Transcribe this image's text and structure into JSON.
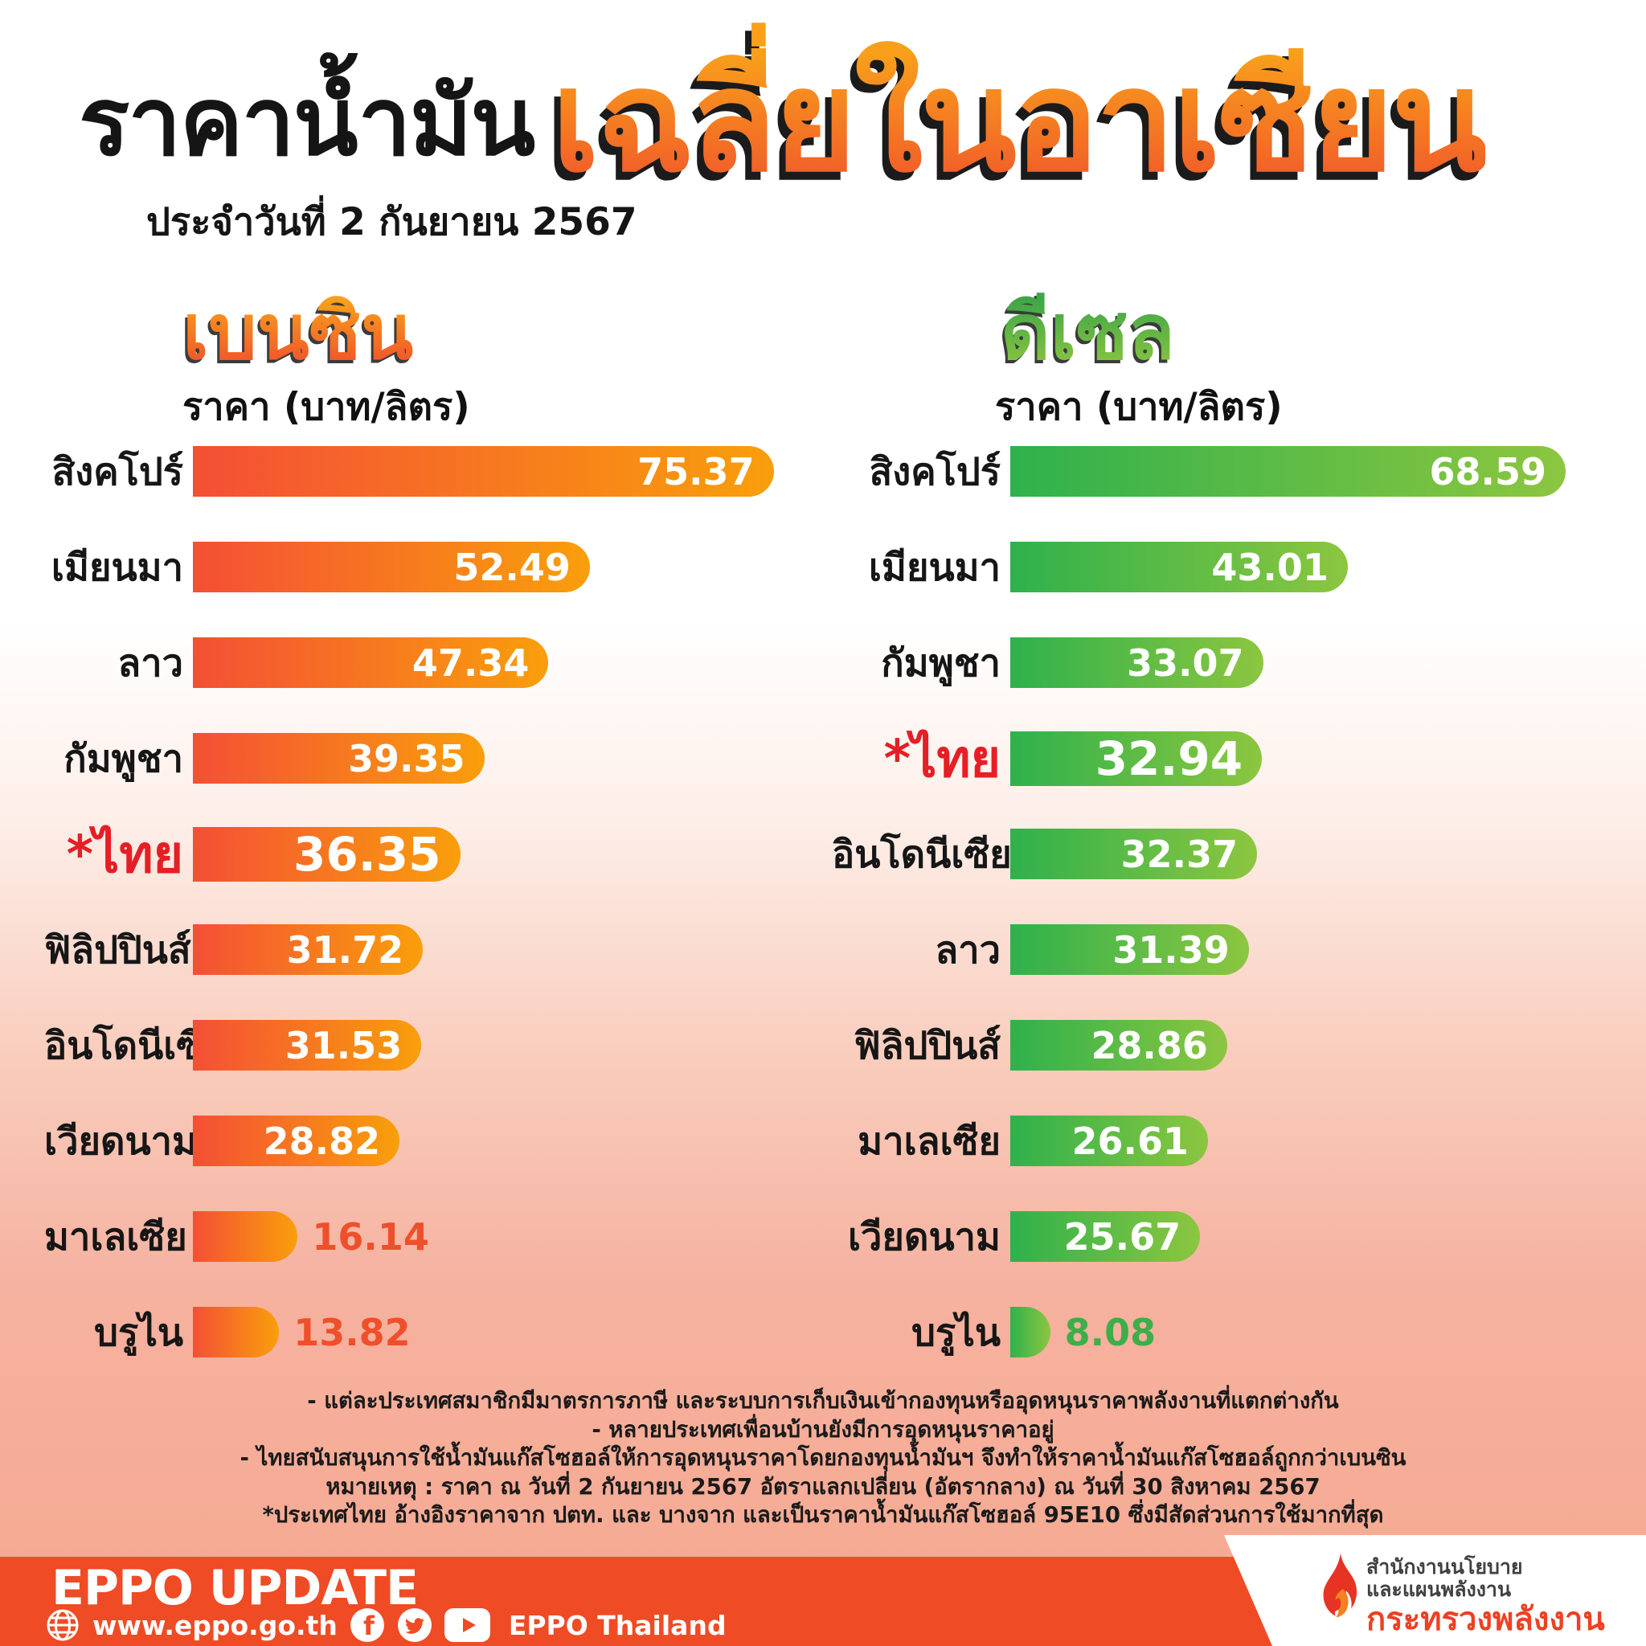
{
  "header": {
    "title": "ราคาน้ำมัน",
    "date": "ประจำวันที่ 2 กันยายน 2567",
    "subtitle": "เฉลี่ยในอาเซียน"
  },
  "chart_data": [
    {
      "type": "bar",
      "title": "เบนซิน",
      "unit_label": "ราคา (บาท/ลิตร)",
      "orientation": "horizontal",
      "xlim": [
        0,
        80
      ],
      "bar_gradient": [
        "#f44f35",
        "#f99f0b"
      ],
      "outside_value_color": "#ef4f2b",
      "highlight": "*ไทย",
      "value_labels_outside": [
        "มาเลเซีย",
        "บรูไน"
      ],
      "categories": [
        "สิงคโปร์",
        "เมียนมา",
        "ลาว",
        "กัมพูชา",
        "*ไทย",
        "ฟิลิปปินส์",
        "อินโดนีเซีย",
        "เวียดนาม",
        "มาเลเซีย",
        "บรูไน"
      ],
      "values": [
        75.37,
        52.49,
        47.34,
        39.35,
        36.35,
        31.72,
        31.53,
        28.82,
        16.14,
        13.82
      ]
    },
    {
      "type": "bar",
      "title": "ดีเซล",
      "unit_label": "ราคา (บาท/ลิตร)",
      "orientation": "horizontal",
      "xlim": [
        0,
        72
      ],
      "bar_gradient": [
        "#2fb14c",
        "#8cc63f"
      ],
      "outside_value_color": "#3dae49",
      "highlight": "*ไทย",
      "value_labels_outside": [
        "บรูไน"
      ],
      "categories": [
        "สิงคโปร์",
        "เมียนมา",
        "กัมพูชา",
        "*ไทย",
        "อินโดนีเซีย",
        "ลาว",
        "ฟิลิปปินส์",
        "มาเลเซีย",
        "เวียดนาม",
        "บรูไน"
      ],
      "values": [
        68.59,
        43.01,
        33.07,
        32.94,
        32.37,
        31.39,
        28.86,
        26.61,
        25.67,
        8.08
      ]
    }
  ],
  "notes": [
    "- แต่ละประเทศสมาชิกมีมาตรการภาษี และระบบการเก็บเงินเข้ากองทุนหรืออุดหนุนราคาพลังงานที่แตกต่างกัน",
    "- หลายประเทศเพื่อนบ้านยังมีการอุดหนุนราคาอยู่",
    "- ไทยสนับสนุนการใช้น้ำมันแก๊สโซฮอล์ให้การอุดหนุนราคาโดยกองทุนน้ำมันฯ จึงทำให้ราคาน้ำมันแก๊สโซฮอล์ถูกกว่าเบนซิน",
    "หมายเหตุ :  ราคา ณ วันที่ 2 กันยายน 2567 อัตราแลกเปลี่ยน (อัตรากลาง) ณ วันที่ 30 สิงหาคม 2567",
    "*ประเทศไทย อ้างอิงราคาจาก ปตท. และ บางจาก และเป็นราคาน้ำมันแก๊สโซฮอล์ 95E10 ซึ่งมีสัดส่วนการใช้มากที่สุด"
  ],
  "footer": {
    "brand": "EPPO UPDATE",
    "website": "www.eppo.go.th",
    "channel": "EPPO Thailand",
    "icons": [
      "globe-icon",
      "facebook-icon",
      "twitter-icon",
      "youtube-icon"
    ],
    "agency": {
      "line1": "สำนักงานนโยบาย",
      "line2": "และแผนพลังงาน",
      "line3": "กระทรวงพลังงาน"
    }
  },
  "colors": {
    "footer_orange": "#ef4b25",
    "highlight_red": "#e61e25",
    "benzine_title_gradient": [
      "#f9a01b",
      "#f0502c"
    ],
    "diesel_title_gradient": [
      "#3fa648",
      "#8cc63f"
    ],
    "ministry_red": "#ee4023",
    "background_bottom": "#f5a88f"
  }
}
